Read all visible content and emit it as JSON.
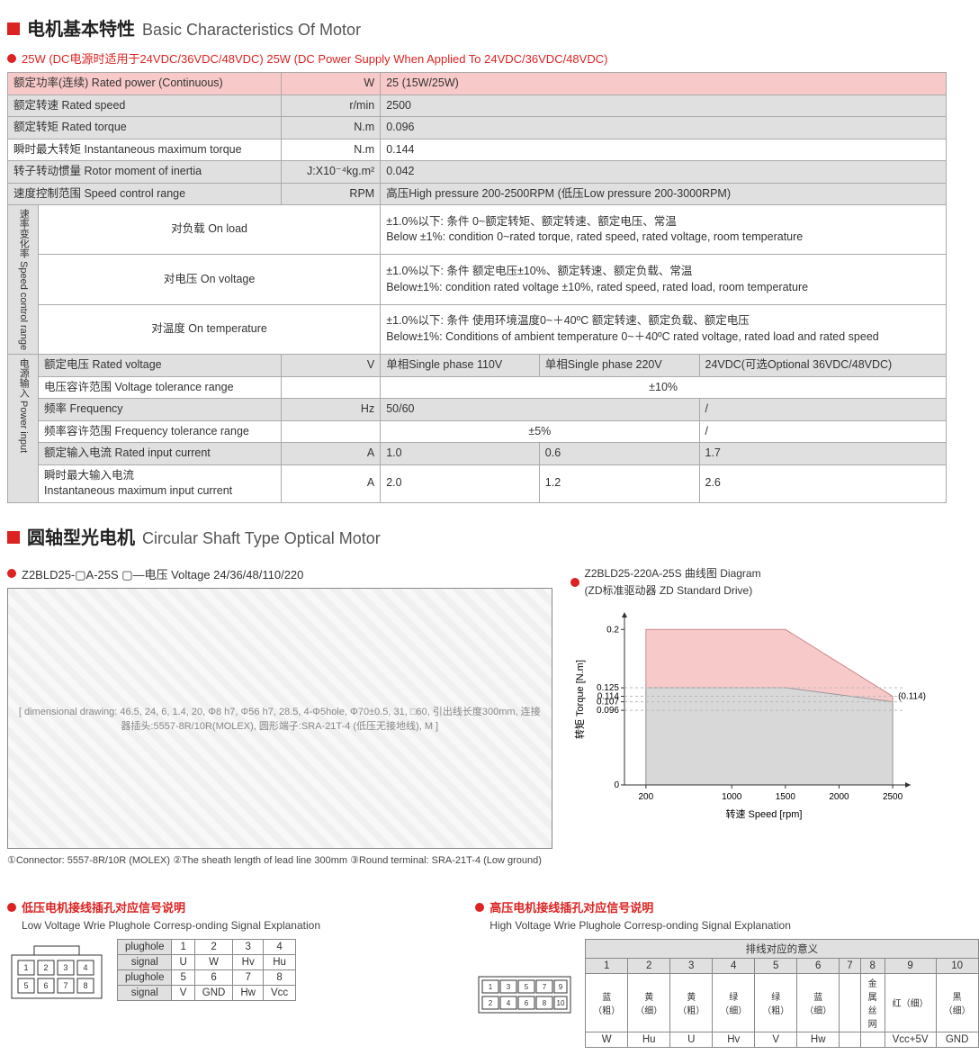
{
  "section1": {
    "title_cn": "电机基本特性",
    "title_en": "Basic Characteristics Of Motor",
    "bullet": "25W (DC电源时适用于24VDC/36VDC/48VDC)   25W (DC Power Supply When Applied To 24VDC/36VDC/48VDC)",
    "rows": [
      {
        "label": "额定功率(连续) Rated power (Continuous)",
        "unit": "W",
        "val": "25 (15W/25W)",
        "hdr": "pink"
      },
      {
        "label": "额定转速 Rated speed",
        "unit": "r/min",
        "val": "2500",
        "hdr": "grey"
      },
      {
        "label": "额定转矩 Rated torque",
        "unit": "N.m",
        "val": "0.096",
        "hdr": "grey"
      },
      {
        "label": "瞬时最大转矩 Instantaneous maximum torque",
        "unit": "N.m",
        "val": "0.144",
        "hdr": "none"
      },
      {
        "label": "转子转动惯量 Rotor moment of inertia",
        "unit": "J:X10⁻⁴kg.m²",
        "val": "0.042",
        "hdr": "grey"
      },
      {
        "label": "速度控制范围 Speed control range",
        "unit": "RPM",
        "val": "高压High pressure 200-2500RPM (低压Low pressure 200-3000RPM)",
        "hdr": "grey"
      }
    ],
    "speed_group_label": "速率变化率 Speed control range",
    "speed_rows": [
      {
        "label": "对负载 On load",
        "val": "±1.0%以下: 条件 0~额定转矩、额定转速、额定电压、常温\nBelow ±1%: condition 0~rated torque, rated speed, rated voltage, room temperature"
      },
      {
        "label": "对电压 On voltage",
        "val": "±1.0%以下: 条件 额定电压±10%、额定转速、额定负载、常温\nBelow±1%: condition rated voltage ±10%, rated speed, rated load, room temperature"
      },
      {
        "label": "对温度 On temperature",
        "val": "±1.0%以下:  条件 使用环境温度0~＋40ºC 额定转速、额定负载、额定电压\nBelow±1%: Conditions of ambient temperature 0~＋40ºC rated voltage, rated load and rated speed"
      }
    ],
    "power_group_label": "电源输入 Power input",
    "power_rows": [
      {
        "label": "额定电压 Rated voltage",
        "unit": "V",
        "v1": "单相Single phase 110V",
        "v2": "单相Single phase 220V",
        "v3": "24VDC(可选Optional 36VDC/48VDC)",
        "hdr": "grey"
      },
      {
        "label": "电压容许范围 Voltage tolerance range",
        "unit": "",
        "v123": "±10%",
        "hdr": "none"
      },
      {
        "label": "频率 Frequency",
        "unit": "Hz",
        "v12": "50/60",
        "v3": "/",
        "hdr": "grey"
      },
      {
        "label": "频率容许范围 Frequency tolerance range",
        "unit": "",
        "v12": "±5%",
        "v3": "/",
        "hdr": "none"
      },
      {
        "label": "额定输入电流 Rated input current",
        "unit": "A",
        "v1": "1.0",
        "v2": "0.6",
        "v3": "1.7",
        "hdr": "grey"
      },
      {
        "label": "瞬时最大输入电流\nInstantaneous maximum input current",
        "unit": "A",
        "v1": "2.0",
        "v2": "1.2",
        "v3": "2.6",
        "hdr": "none"
      }
    ]
  },
  "section2": {
    "title_cn": "圆轴型光电机",
    "title_en": "Circular Shaft Type Optical Motor",
    "bullet_left": "Z2BLD25-▢A-25S   ▢—电压 Voltage 24/36/48/110/220",
    "bullet_right_l1": "Z2BLD25-220A-25S 曲线图 Diagram",
    "bullet_right_l2": "(ZD标准驱动器 ZD Standard Drive)",
    "drawing_placeholder": "[ dimensional drawing: 46.5, 24, 6, 1.4, 20, Φ8 h7, Φ56 h7, 28.5, 4-Φ5hole, Φ70±0.5, 31, □60, 引出线长度300mm, 连接器插头:5557-8R/10R(MOLEX), 圆形端子:SRA-21T-4 (低压无接地线), M ]",
    "footnote": "①Connector: 5557-8R/10R (MOLEX)  ②The sheath length of lead line 300mm  ③Round terminal: SRA-21T-4 (Low ground)",
    "chart": {
      "ylabel": "转矩 Torque [N.m]",
      "xlabel": "转速 Speed [rpm]",
      "yticks": [
        0,
        0.096,
        0.107,
        0.114,
        0.125,
        0.2
      ],
      "xticks": [
        200,
        1000,
        1500,
        2000,
        2500
      ],
      "annot": "(0.114)",
      "pink_poly": [
        [
          200,
          0.2
        ],
        [
          1500,
          0.2
        ],
        [
          2500,
          0.114
        ],
        [
          2500,
          0
        ],
        [
          200,
          0
        ]
      ],
      "grey_poly": [
        [
          200,
          0.125
        ],
        [
          1500,
          0.125
        ],
        [
          2500,
          0.107
        ],
        [
          2500,
          0
        ],
        [
          200,
          0
        ]
      ],
      "colors": {
        "pink": "#f7c9c9",
        "grey": "#d8d8d8",
        "axis": "#333"
      }
    }
  },
  "section3": {
    "left": {
      "title_cn": "低压电机接线插孔对应信号说明",
      "title_en": "Low Voltage  Wrie Plughole Corresp-onding Signal Explanation",
      "table": {
        "r1h": "plughole",
        "r1": [
          "1",
          "2",
          "3",
          "4"
        ],
        "r2h": "signal",
        "r2": [
          "U",
          "W",
          "Hv",
          "Hu"
        ],
        "r3h": "plughole",
        "r3": [
          "5",
          "6",
          "7",
          "8"
        ],
        "r4h": "signal",
        "r4": [
          "V",
          "GND",
          "Hw",
          "Vcc"
        ]
      }
    },
    "right": {
      "title_cn": "高压电机接线插孔对应信号说明",
      "title_en": "High Voltage  Wrie Plughole Corresp-onding Signal Explanation",
      "table": {
        "hdr": "排线对应的意义",
        "nums": [
          "1",
          "2",
          "3",
          "4",
          "5",
          "6",
          "7",
          "8",
          "9",
          "10"
        ],
        "row_cn": [
          "蓝（粗）",
          "黄（细）",
          "黄（粗）",
          "绿（细）",
          "绿（粗）",
          "蓝（细）",
          "",
          "金属丝网",
          "红（细）",
          "黑（细）"
        ],
        "row_en": [
          "W",
          "Hu",
          "U",
          "Hv",
          "V",
          "Hw",
          "",
          "",
          "Vcc+5V",
          "GND"
        ]
      }
    }
  }
}
